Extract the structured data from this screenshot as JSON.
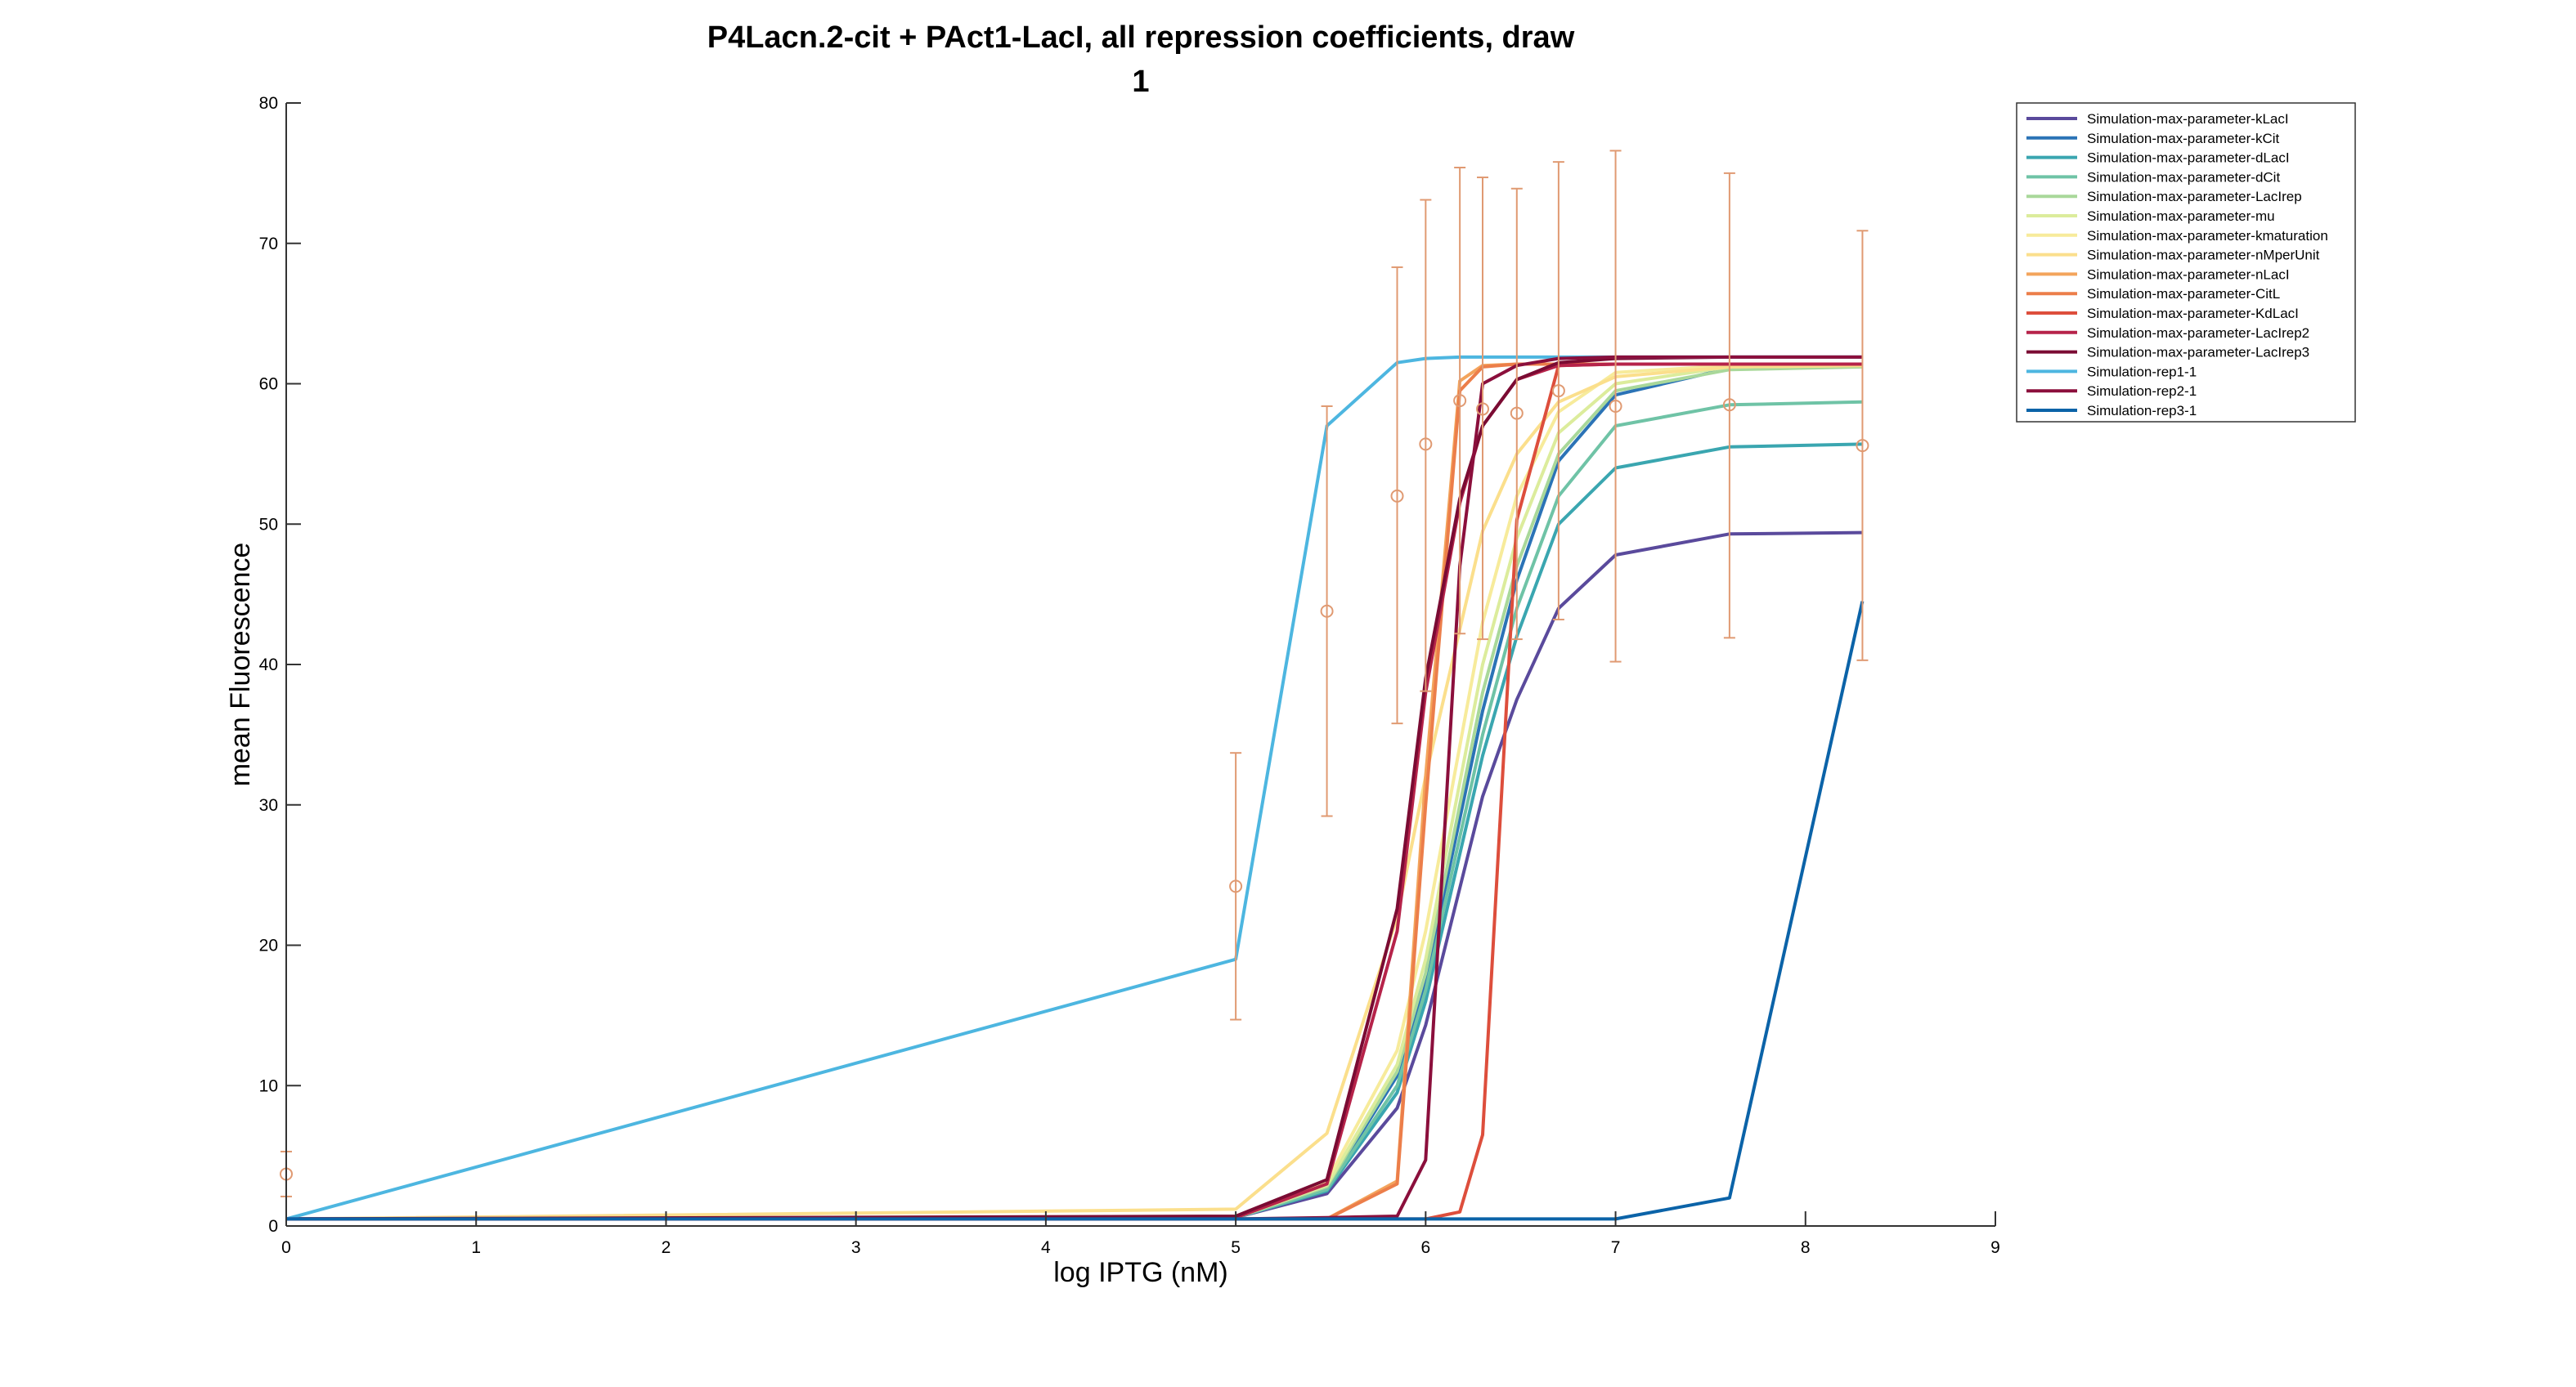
{
  "chart_data": {
    "type": "line",
    "title": "P4Lacn.2-cit + PAct1-LacI, all repression coefficients, draw",
    "subtitle": "1",
    "xlabel": "log IPTG (nM)",
    "ylabel": "mean Fluorescence",
    "xlim": [
      0,
      9
    ],
    "ylim": [
      0,
      80
    ],
    "xticks": [
      0,
      1,
      2,
      3,
      4,
      5,
      6,
      7,
      8,
      9
    ],
    "yticks": [
      0,
      10,
      20,
      30,
      40,
      50,
      60,
      70,
      80
    ],
    "grid": false,
    "legend_position": "top-right (outside plot)",
    "series": [
      {
        "name": "Simulation-max-parameter-kLacI",
        "color": "#5a4a9c",
        "x": [
          0,
          5,
          5.48,
          5.85,
          6,
          6.3,
          6.48,
          6.7,
          7,
          7.6,
          8.3
        ],
        "y": [
          0.5,
          0.6,
          2.3,
          8.4,
          14.3,
          30.6,
          37.5,
          44,
          47.8,
          49.3,
          49.4
        ]
      },
      {
        "name": "Simulation-max-parameter-kCit",
        "color": "#2b73b6",
        "x": [
          0,
          5,
          5.48,
          5.85,
          6,
          6.3,
          6.48,
          6.7,
          7,
          7.6,
          8.3
        ],
        "y": [
          0.5,
          0.6,
          2.7,
          10.7,
          17.5,
          36.7,
          46,
          54.5,
          59.2,
          61.1,
          61.3
        ]
      },
      {
        "name": "Simulation-max-parameter-dLacI",
        "color": "#3aa6b0",
        "x": [
          0,
          5,
          5.48,
          5.85,
          6,
          6.3,
          6.48,
          6.7,
          7,
          7.6,
          8.3
        ],
        "y": [
          0.5,
          0.6,
          2.5,
          9.5,
          16,
          33.5,
          42,
          50,
          54,
          55.5,
          55.7
        ]
      },
      {
        "name": "Simulation-max-parameter-dCit",
        "color": "#6fc3a6",
        "x": [
          0,
          5,
          5.48,
          5.85,
          6,
          6.3,
          6.48,
          6.7,
          7,
          7.6,
          8.3
        ],
        "y": [
          0.5,
          0.6,
          2.6,
          10,
          16.8,
          35,
          44,
          52,
          57,
          58.5,
          58.7
        ]
      },
      {
        "name": "Simulation-max-parameter-LacIrep",
        "color": "#a9d89a",
        "x": [
          0,
          5,
          5.48,
          5.85,
          6,
          6.3,
          6.48,
          6.7,
          7,
          7.6,
          8.3
        ],
        "y": [
          0.5,
          0.6,
          2.8,
          11,
          18,
          38,
          47,
          55,
          59.5,
          61,
          61.2
        ]
      },
      {
        "name": "Simulation-max-parameter-mu",
        "color": "#dcec9c",
        "x": [
          0,
          5,
          5.48,
          5.85,
          6,
          6.3,
          6.48,
          6.7,
          7,
          7.6,
          8.3
        ],
        "y": [
          0.5,
          0.6,
          2.9,
          11.5,
          19,
          40,
          49,
          56.5,
          60,
          61.2,
          61.3
        ]
      },
      {
        "name": "Simulation-max-parameter-kmaturation",
        "color": "#f7eb9b",
        "x": [
          0,
          5,
          5.48,
          5.85,
          6,
          6.3,
          6.48,
          6.7,
          7,
          7.6,
          8.3
        ],
        "y": [
          0.5,
          0.7,
          3.2,
          12.5,
          21,
          43,
          52,
          58,
          60.8,
          61.3,
          61.4
        ]
      },
      {
        "name": "Simulation-max-parameter-nMperUnit",
        "color": "#fbdf8c",
        "x": [
          0,
          5,
          5.48,
          5.85,
          6,
          6.3,
          6.48,
          6.7,
          7,
          7.6,
          8.3
        ],
        "y": [
          0.5,
          1.2,
          6.6,
          22,
          32,
          49.5,
          55,
          58.7,
          60.5,
          61.2,
          61.3
        ]
      },
      {
        "name": "Simulation-max-parameter-nLacI",
        "color": "#f3a45c",
        "x": [
          0,
          5,
          5.48,
          5.85,
          6,
          6.18,
          6.3,
          6.48,
          6.7,
          7,
          7.6,
          8.3
        ],
        "y": [
          0.5,
          0.5,
          0.5,
          3.2,
          32,
          60.2,
          61.3,
          61.4,
          61.4,
          61.4,
          61.4,
          61.4
        ]
      },
      {
        "name": "Simulation-max-parameter-CitL",
        "color": "#ec7e4a",
        "x": [
          0,
          5,
          5.48,
          5.85,
          6,
          6.18,
          6.3,
          6.48,
          6.7,
          7,
          7.6,
          8.3
        ],
        "y": [
          0.5,
          0.5,
          0.5,
          3,
          30,
          59.5,
          61.2,
          61.4,
          61.4,
          61.4,
          61.4,
          61.4
        ]
      },
      {
        "name": "Simulation-max-parameter-KdLacI",
        "color": "#dd4e3c",
        "x": [
          0,
          5,
          5.48,
          5.85,
          6,
          6.18,
          6.3,
          6.48,
          6.7,
          7,
          7.6,
          8.3
        ],
        "y": [
          0.5,
          0.5,
          0.5,
          0.5,
          0.5,
          1,
          6.5,
          50.3,
          61.3,
          61.4,
          61.4,
          61.4
        ]
      },
      {
        "name": "Simulation-max-parameter-LacIrep2",
        "color": "#b6234a",
        "x": [
          0,
          5,
          5.48,
          5.85,
          6,
          6.18,
          6.3,
          6.48,
          6.7,
          7,
          7.6,
          8.3
        ],
        "y": [
          0.5,
          0.6,
          3,
          21,
          38,
          51.5,
          57,
          60.3,
          61.3,
          61.4,
          61.4,
          61.4
        ]
      },
      {
        "name": "Simulation-max-parameter-LacIrep3",
        "color": "#7a0b33",
        "x": [
          0,
          5,
          5.48,
          5.85,
          6,
          6.18,
          6.3,
          6.48,
          6.7,
          7,
          7.6,
          8.3
        ],
        "y": [
          0.5,
          0.7,
          3.3,
          22.6,
          39,
          51.8,
          57,
          60.3,
          61.5,
          61.8,
          61.9,
          61.9
        ]
      },
      {
        "name": "Simulation-rep1-1",
        "color": "#4db6e0",
        "x": [
          0,
          5,
          5.48,
          5.85,
          6,
          6.18,
          6.3,
          6.48,
          6.7,
          7,
          7.6,
          8.3
        ],
        "y": [
          0.5,
          19,
          57,
          61.5,
          61.8,
          61.9,
          61.9,
          61.9,
          61.9,
          61.9,
          61.9,
          61.9
        ]
      },
      {
        "name": "Simulation-rep2-1",
        "color": "#8b0f3c",
        "x": [
          0,
          5,
          5.48,
          5.85,
          6,
          6.18,
          6.3,
          6.48,
          6.7,
          7,
          7.6,
          8.3
        ],
        "y": [
          0.5,
          0.5,
          0.6,
          0.7,
          4.7,
          47,
          60,
          61.3,
          61.8,
          61.9,
          61.9,
          61.9
        ]
      },
      {
        "name": "Simulation-rep3-1",
        "color": "#0b63a8",
        "x": [
          0,
          5,
          5.48,
          5.85,
          6,
          6.48,
          7,
          7.6,
          8.3
        ],
        "y": [
          0.5,
          0.5,
          0.5,
          0.5,
          0.5,
          0.5,
          0.5,
          2,
          44.5
        ]
      }
    ],
    "data_points": {
      "color": "#e09a72",
      "x": [
        0,
        5,
        5.48,
        5.85,
        6,
        6.18,
        6.3,
        6.48,
        6.7,
        7,
        7.6,
        8.3
      ],
      "y": [
        3.7,
        24.2,
        43.8,
        52,
        55.7,
        58.8,
        58.2,
        57.9,
        59.5,
        58.4,
        58.5,
        55.6
      ],
      "y_low": [
        2.1,
        14.7,
        29.2,
        35.8,
        38.1,
        42.2,
        41.8,
        41.8,
        43.2,
        40.2,
        41.9,
        40.3
      ],
      "y_high": [
        5.3,
        33.7,
        58.4,
        68.3,
        73.1,
        75.4,
        74.7,
        73.9,
        75.8,
        76.6,
        75,
        70.9
      ]
    }
  }
}
